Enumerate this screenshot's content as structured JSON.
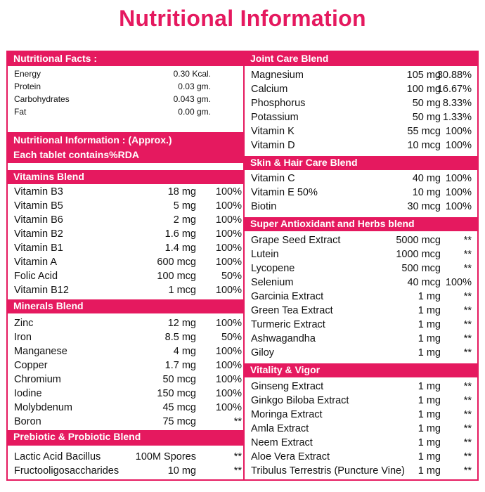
{
  "title": "Nutritional Information",
  "left": {
    "facts": {
      "header": "Nutritional Facts :",
      "rows": [
        {
          "name": "Energy",
          "amount": "0.30 Kcal."
        },
        {
          "name": "Protein",
          "amount": "0.03 gm."
        },
        {
          "name": "Carbohydrates",
          "amount": "0.043 gm."
        },
        {
          "name": "Fat",
          "amount": "0.00 gm."
        }
      ]
    },
    "info": {
      "line1": "Nutritional Information : (Approx.)",
      "line2": "Each tablet contains%RDA"
    },
    "vitamins": {
      "header": "Vitamins Blend",
      "rows": [
        {
          "name": "Vitamin B3",
          "amount": "18 mg",
          "rda": "100%"
        },
        {
          "name": "Vitamin B5",
          "amount": "5 mg",
          "rda": "100%"
        },
        {
          "name": "Vitamin B6",
          "amount": "2 mg",
          "rda": "100%"
        },
        {
          "name": "Vitamin B2",
          "amount": "1.6 mg",
          "rda": "100%"
        },
        {
          "name": "Vitamin B1",
          "amount": "1.4 mg",
          "rda": "100%"
        },
        {
          "name": "Vitamin A",
          "amount": "600 mcg",
          "rda": "100%"
        },
        {
          "name": "Folic Acid",
          "amount": "100 mcg",
          "rda": "50%"
        },
        {
          "name": "Vitamin B12",
          "amount": "1 mcg",
          "rda": "100%"
        }
      ]
    },
    "minerals": {
      "header": "Minerals Blend",
      "rows": [
        {
          "name": "Zinc",
          "amount": "12 mg",
          "rda": "100%"
        },
        {
          "name": "Iron",
          "amount": "8.5 mg",
          "rda": "50%"
        },
        {
          "name": "Manganese",
          "amount": "4 mg",
          "rda": "100%"
        },
        {
          "name": "Copper",
          "amount": "1.7 mg",
          "rda": "100%"
        },
        {
          "name": "Chromium",
          "amount": "50 mcg",
          "rda": "100%"
        },
        {
          "name": "Iodine",
          "amount": "150 mcg",
          "rda": "100%"
        },
        {
          "name": "Molybdenum",
          "amount": "45 mcg",
          "rda": "100%"
        },
        {
          "name": "Boron",
          "amount": "75 mcg",
          "rda": "**"
        }
      ]
    },
    "prebiotic": {
      "header": "Prebiotic & Probiotic Blend",
      "rows": [
        {
          "name": "Lactic Acid Bacillus",
          "amount": "100M Spores",
          "rda": "**"
        },
        {
          "name": "Fructooligosaccharides",
          "amount": "10 mg",
          "rda": "**"
        }
      ]
    }
  },
  "right": {
    "joint": {
      "header": "Joint Care Blend",
      "rows": [
        {
          "name": "Magnesium",
          "amount": "105 mg",
          "rda": "30.88%"
        },
        {
          "name": "Calcium",
          "amount": "100 mg",
          "rda": "16.67%"
        },
        {
          "name": "Phosphorus",
          "amount": "50 mg",
          "rda": "8.33%"
        },
        {
          "name": "Potassium",
          "amount": "50 mg",
          "rda": "1.33%"
        },
        {
          "name": "Vitamin K",
          "amount": "55 mcg",
          "rda": "100%"
        },
        {
          "name": "Vitamin D",
          "amount": "10 mcg",
          "rda": "100%"
        }
      ]
    },
    "skin": {
      "header": "Skin & Hair Care Blend",
      "rows": [
        {
          "name": "Vitamin C",
          "amount": "40 mg",
          "rda": "100%"
        },
        {
          "name": "Vitamin E 50%",
          "amount": "10 mg",
          "rda": "100%"
        },
        {
          "name": "Biotin",
          "amount": "30 mcg",
          "rda": "100%"
        }
      ]
    },
    "antioxidant": {
      "header": "Super Antioxidant and Herbs blend",
      "rows": [
        {
          "name": "Grape Seed Extract",
          "amount": "5000 mcg",
          "rda": "**"
        },
        {
          "name": "Lutein",
          "amount": "1000 mcg",
          "rda": "**"
        },
        {
          "name": "Lycopene",
          "amount": "500 mcg",
          "rda": "**"
        },
        {
          "name": "Selenium",
          "amount": "40 mcg",
          "rda": "100%"
        },
        {
          "name": "Garcinia Extract",
          "amount": "1 mg",
          "rda": "**"
        },
        {
          "name": "Green Tea Extract",
          "amount": "1 mg",
          "rda": "**"
        },
        {
          "name": "Turmeric Extract",
          "amount": "1 mg",
          "rda": "**"
        },
        {
          "name": "Ashwagandha",
          "amount": "1 mg",
          "rda": "**"
        },
        {
          "name": "Giloy",
          "amount": "1 mg",
          "rda": "**"
        }
      ]
    },
    "vitality": {
      "header": "Vitality & Vigor",
      "rows": [
        {
          "name": "Ginseng Extract",
          "amount": "1 mg",
          "rda": "**"
        },
        {
          "name": "Ginkgo Biloba Extract",
          "amount": "1 mg",
          "rda": "**"
        },
        {
          "name": "Moringa Extract",
          "amount": "1 mg",
          "rda": "**"
        },
        {
          "name": "Amla Extract",
          "amount": "1 mg",
          "rda": "**"
        },
        {
          "name": "Neem Extract",
          "amount": "1 mg",
          "rda": "**"
        },
        {
          "name": "Aloe Vera Extract",
          "amount": "1 mg",
          "rda": "**"
        },
        {
          "name": "Tribulus Terrestris (Puncture Vine)",
          "amount": "1 mg",
          "rda": "**"
        }
      ]
    }
  }
}
